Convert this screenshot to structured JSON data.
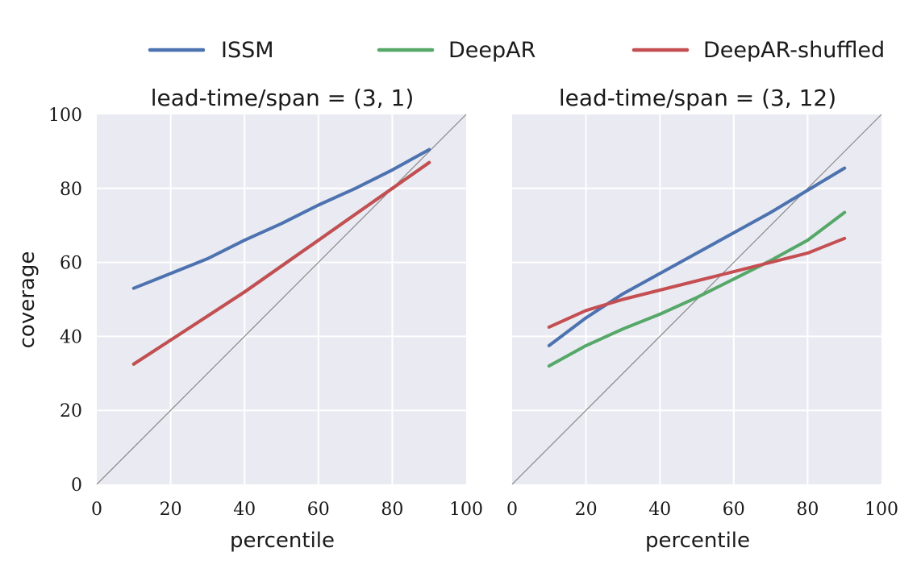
{
  "legend": [
    {
      "name": "ISSM",
      "color": "#4c72b0"
    },
    {
      "name": "DeepAR",
      "color": "#55a868"
    },
    {
      "name": "DeepAR-shuffled",
      "color": "#c44e52"
    }
  ],
  "ylabel": "coverage",
  "chart_data": [
    {
      "type": "line",
      "title": "lead-time/span = (3, 1)",
      "xlabel": "percentile",
      "ylabel": "coverage",
      "xlim": [
        0,
        100
      ],
      "ylim": [
        0,
        100
      ],
      "xticks": [
        "0",
        "20",
        "40",
        "60",
        "80",
        "100"
      ],
      "yticks": [
        "0",
        "20",
        "40",
        "60",
        "80",
        "100"
      ],
      "grid": true,
      "reference_line": "y = x",
      "series": [
        {
          "name": "ISSM",
          "color": "#4c72b0",
          "x": [
            10,
            20,
            30,
            40,
            50,
            60,
            70,
            80,
            90
          ],
          "y": [
            53,
            57,
            61,
            66,
            70.5,
            75.5,
            80,
            85,
            90.5
          ]
        },
        {
          "name": "DeepAR",
          "color": "#55a868",
          "x": [
            10,
            20,
            30,
            40,
            50,
            60,
            70,
            80,
            90
          ],
          "y": [
            32.5,
            39,
            45.5,
            52,
            59,
            66,
            73,
            80,
            87
          ]
        },
        {
          "name": "DeepAR-shuffled",
          "color": "#c44e52",
          "x": [
            10,
            20,
            30,
            40,
            50,
            60,
            70,
            80,
            90
          ],
          "y": [
            32.5,
            39,
            45.5,
            52,
            59,
            66,
            73,
            80,
            87
          ]
        }
      ]
    },
    {
      "type": "line",
      "title": "lead-time/span = (3, 12)",
      "xlabel": "percentile",
      "ylabel": "",
      "xlim": [
        0,
        100
      ],
      "ylim": [
        0,
        100
      ],
      "xticks": [
        "0",
        "20",
        "40",
        "60",
        "80",
        "100"
      ],
      "yticks": [],
      "grid": true,
      "reference_line": "y = x",
      "series": [
        {
          "name": "ISSM",
          "color": "#4c72b0",
          "x": [
            10,
            20,
            30,
            40,
            50,
            60,
            70,
            80,
            90
          ],
          "y": [
            37.5,
            45,
            51.5,
            57,
            62.5,
            68,
            73.5,
            79.5,
            85.5
          ]
        },
        {
          "name": "DeepAR",
          "color": "#55a868",
          "x": [
            10,
            20,
            30,
            40,
            50,
            60,
            70,
            80,
            90
          ],
          "y": [
            32,
            37.5,
            42,
            46,
            50.5,
            55.5,
            60.5,
            66,
            73.5
          ]
        },
        {
          "name": "DeepAR-shuffled",
          "color": "#c44e52",
          "x": [
            10,
            20,
            30,
            40,
            50,
            60,
            70,
            80,
            90
          ],
          "y": [
            42.5,
            47,
            50,
            52.5,
            55,
            57.5,
            60,
            62.5,
            66.5
          ]
        }
      ]
    }
  ]
}
